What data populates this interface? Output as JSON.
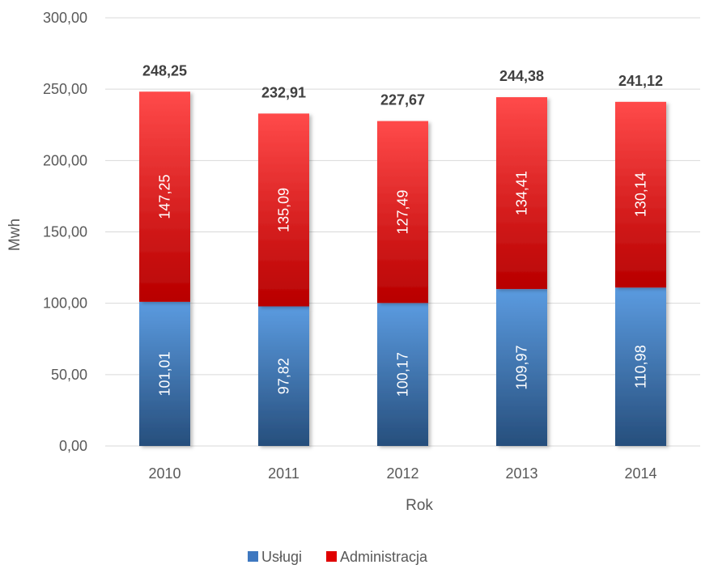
{
  "chart_data": {
    "type": "bar",
    "stacked": true,
    "categories": [
      "2010",
      "2011",
      "2012",
      "2013",
      "2014"
    ],
    "series": [
      {
        "name": "Usługi",
        "color": "#3E78C0",
        "values": [
          101.01,
          97.82,
          100.17,
          109.97,
          110.98
        ],
        "labels": [
          "101,01",
          "97,82",
          "100,17",
          "109,97",
          "110,98"
        ]
      },
      {
        "name": "Administracja",
        "color": "#E00000",
        "values": [
          147.25,
          135.09,
          127.49,
          134.41,
          130.14
        ],
        "labels": [
          "147,25",
          "135,09",
          "127,49",
          "134,41",
          "130,14"
        ]
      }
    ],
    "totals": [
      248.25,
      232.91,
      227.67,
      244.38,
      241.12
    ],
    "total_labels": [
      "248,25",
      "232,91",
      "227,67",
      "244,38",
      "241,12"
    ],
    "ylim": [
      0,
      300
    ],
    "yticks": [
      0,
      50,
      100,
      150,
      200,
      250,
      300
    ],
    "ytick_labels": [
      "0,00",
      "50,00",
      "100,00",
      "150,00",
      "200,00",
      "250,00",
      "300,00"
    ],
    "xlabel": "Rok",
    "ylabel": "Mwh",
    "grid": true,
    "legend_position": "bottom"
  }
}
